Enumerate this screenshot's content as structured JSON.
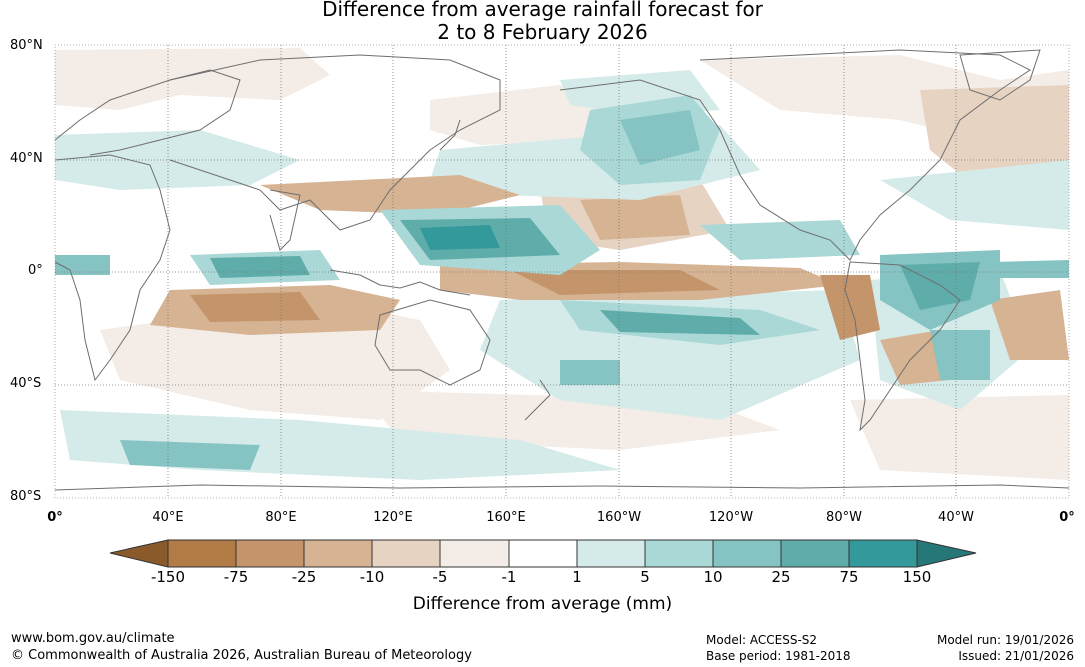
{
  "title": {
    "line1": "Difference from average rainfall forecast for",
    "line2": "2 to 8 February 2026"
  },
  "axes": {
    "lat_labels": [
      "80°N",
      "40°N",
      "0°",
      "40°S",
      "80°S"
    ],
    "lon_labels": [
      "0°",
      "40°E",
      "80°E",
      "120°E",
      "160°E",
      "160°W",
      "120°W",
      "80°W",
      "40°W",
      "0°"
    ]
  },
  "colorbar": {
    "ticks": [
      "-150",
      "-75",
      "-25",
      "-10",
      "-5",
      "-1",
      "1",
      "5",
      "10",
      "25",
      "75",
      "150"
    ],
    "colors": [
      "#8b5a2b",
      "#b07b44",
      "#c4946a",
      "#d6b393",
      "#e7d3c2",
      "#f4ece6",
      "#ffffff",
      "#d4ebe9",
      "#aad8d6",
      "#85c4c2",
      "#5eadab",
      "#34999a",
      "#267878"
    ],
    "label": "Difference from average (mm)"
  },
  "footer": {
    "url": "www.bom.gov.au/climate",
    "copyright": "© Commonwealth of Australia 2026, Australian Bureau of Meteorology",
    "model": "Model: ACCESS-S2",
    "base_period": "Base period: 1981-2018",
    "model_run": "Model run: 19/01/2026",
    "issued": "Issued: 21/01/2026"
  }
}
